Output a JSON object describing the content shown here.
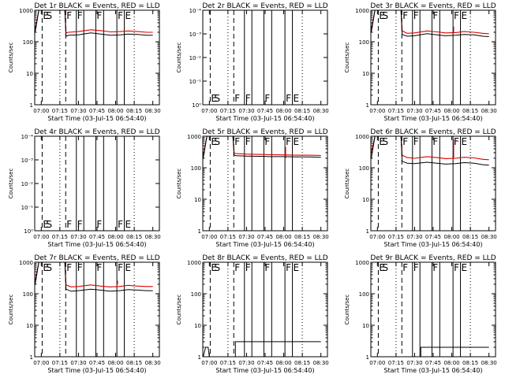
{
  "chart_data": {
    "type": "line",
    "panel_title_suffix": "BLACK = Events, RED = LLD",
    "xlabel": "Start Time (03-Jul-15 06:54:40)",
    "ylabel": "Counts/sec",
    "series_names": [
      "Events",
      "LLD"
    ],
    "series_colors": {
      "Events": "#000000",
      "LLD": "#dd0000"
    },
    "x_unit": "minutes after 07:00",
    "xlim": [
      -5.3,
      95.3
    ],
    "x_tick_values": [
      0,
      15,
      30,
      45,
      60,
      75,
      90
    ],
    "x_tick_labels": [
      "07:00",
      "07:15",
      "07:30",
      "07:45",
      "08:00",
      "08:15",
      "08:30"
    ],
    "ylim": [
      1,
      1000
    ],
    "y_scale": "log",
    "y_tick_values": [
      1,
      10,
      100,
      1000
    ],
    "y_tick_labels": [
      "1",
      "10",
      "100",
      "1000"
    ],
    "y_tick_labels_empty_panel": [
      "10⁰",
      "10⁻¹",
      "10⁻²",
      "10⁻³",
      "10⁻⁴"
    ],
    "markers": [
      {
        "minute": 0.7,
        "text": "E",
        "line": "dashed"
      },
      {
        "minute": 3.3,
        "text": "S",
        "line": "none"
      },
      {
        "minute": 15.0,
        "text": "",
        "line": "dotted"
      },
      {
        "minute": 19.7,
        "text": "F",
        "line": "dashed"
      },
      {
        "minute": 28.3,
        "text": "F",
        "line": "solid"
      },
      {
        "minute": 34.3,
        "text": "",
        "line": "solid"
      },
      {
        "minute": 44.0,
        "text": "F",
        "line": "solid"
      },
      {
        "minute": 50.3,
        "text": "",
        "line": "solid"
      },
      {
        "minute": 61.0,
        "text": "F",
        "line": "solid"
      },
      {
        "minute": 67.0,
        "text": "E",
        "line": "solid"
      },
      {
        "minute": 75.0,
        "text": "",
        "line": "dotted"
      }
    ],
    "panels": [
      {
        "id": "1r",
        "title": "Det 1r",
        "has_data": true,
        "spike": null,
        "events": [
          [
            -5,
            200
          ],
          [
            -2,
            1000
          ],
          [
            19,
            1000
          ],
          [
            20,
            150
          ],
          [
            22,
            160
          ],
          [
            30,
            165
          ],
          [
            40,
            190
          ],
          [
            48,
            175
          ],
          [
            56,
            160
          ],
          [
            64,
            165
          ],
          [
            70,
            175
          ],
          [
            78,
            170
          ],
          [
            85,
            160
          ],
          [
            90,
            160
          ]
        ],
        "lld": [
          [
            -5,
            250
          ],
          [
            -2,
            1000
          ],
          [
            19,
            1000
          ],
          [
            20,
            190
          ],
          [
            22,
            200
          ],
          [
            30,
            210
          ],
          [
            40,
            240
          ],
          [
            48,
            225
          ],
          [
            56,
            205
          ],
          [
            64,
            210
          ],
          [
            70,
            220
          ],
          [
            78,
            210
          ],
          [
            85,
            200
          ],
          [
            90,
            200
          ]
        ]
      },
      {
        "id": "2r",
        "title": "Det 2r",
        "has_data": false,
        "spike": null,
        "events": [],
        "lld": []
      },
      {
        "id": "3r",
        "title": "Det 3r",
        "has_data": true,
        "spike": 300,
        "events": [
          [
            -5,
            200
          ],
          [
            -2,
            1000
          ],
          [
            19,
            1000
          ],
          [
            20,
            170
          ],
          [
            24,
            150
          ],
          [
            30,
            155
          ],
          [
            40,
            180
          ],
          [
            48,
            165
          ],
          [
            55,
            155
          ],
          [
            63,
            160
          ],
          [
            70,
            170
          ],
          [
            78,
            165
          ],
          [
            85,
            150
          ],
          [
            90,
            145
          ]
        ],
        "lld": [
          [
            -5,
            250
          ],
          [
            -2,
            1000
          ],
          [
            19,
            1000
          ],
          [
            20,
            220
          ],
          [
            24,
            185
          ],
          [
            30,
            190
          ],
          [
            40,
            220
          ],
          [
            48,
            205
          ],
          [
            55,
            190
          ],
          [
            63,
            195
          ],
          [
            70,
            210
          ],
          [
            78,
            200
          ],
          [
            85,
            185
          ],
          [
            90,
            180
          ]
        ]
      },
      {
        "id": "4r",
        "title": "Det 4r",
        "has_data": false,
        "spike": null,
        "events": [],
        "lld": []
      },
      {
        "id": "5r",
        "title": "Det 5r",
        "has_data": true,
        "spike": 450,
        "events": [
          [
            -5,
            200
          ],
          [
            -2,
            1000
          ],
          [
            19,
            1000
          ],
          [
            20,
            250
          ],
          [
            22,
            240
          ],
          [
            30,
            235
          ],
          [
            40,
            230
          ],
          [
            50,
            225
          ],
          [
            60,
            225
          ],
          [
            70,
            220
          ],
          [
            80,
            220
          ],
          [
            90,
            215
          ]
        ],
        "lld": [
          [
            -5,
            250
          ],
          [
            -2,
            1000
          ],
          [
            19,
            1000
          ],
          [
            20,
            290
          ],
          [
            22,
            280
          ],
          [
            30,
            270
          ],
          [
            40,
            265
          ],
          [
            50,
            260
          ],
          [
            60,
            255
          ],
          [
            70,
            250
          ],
          [
            80,
            250
          ],
          [
            90,
            245
          ]
        ]
      },
      {
        "id": "6r",
        "title": "Det 6r",
        "has_data": true,
        "spike": 800,
        "events": [
          [
            -5,
            200
          ],
          [
            -2,
            1000
          ],
          [
            19,
            1000
          ],
          [
            20,
            160
          ],
          [
            24,
            140
          ],
          [
            30,
            135
          ],
          [
            40,
            150
          ],
          [
            48,
            140
          ],
          [
            55,
            130
          ],
          [
            63,
            135
          ],
          [
            70,
            145
          ],
          [
            78,
            140
          ],
          [
            85,
            125
          ],
          [
            90,
            120
          ]
        ],
        "lld": [
          [
            -5,
            300
          ],
          [
            -2,
            1000
          ],
          [
            19,
            1000
          ],
          [
            20,
            250
          ],
          [
            24,
            210
          ],
          [
            30,
            200
          ],
          [
            40,
            225
          ],
          [
            48,
            210
          ],
          [
            55,
            195
          ],
          [
            63,
            200
          ],
          [
            70,
            215
          ],
          [
            78,
            205
          ],
          [
            85,
            185
          ],
          [
            90,
            180
          ]
        ]
      },
      {
        "id": "7r",
        "title": "Det 7r",
        "has_data": true,
        "spike": 260,
        "events": [
          [
            -5,
            200
          ],
          [
            -2,
            1000
          ],
          [
            19,
            1000
          ],
          [
            20,
            140
          ],
          [
            24,
            120
          ],
          [
            30,
            125
          ],
          [
            40,
            140
          ],
          [
            48,
            130
          ],
          [
            55,
            120
          ],
          [
            63,
            125
          ],
          [
            70,
            135
          ],
          [
            78,
            130
          ],
          [
            85,
            125
          ],
          [
            90,
            125
          ]
        ],
        "lld": [
          [
            -5,
            260
          ],
          [
            -2,
            1000
          ],
          [
            19,
            1000
          ],
          [
            20,
            190
          ],
          [
            24,
            165
          ],
          [
            30,
            170
          ],
          [
            40,
            190
          ],
          [
            48,
            175
          ],
          [
            55,
            165
          ],
          [
            63,
            170
          ],
          [
            70,
            185
          ],
          [
            78,
            175
          ],
          [
            85,
            170
          ],
          [
            90,
            170
          ]
        ]
      },
      {
        "id": "8r",
        "title": "Det 8r",
        "has_data": true,
        "spike": null,
        "events": [
          [
            -5,
            1
          ],
          [
            -3,
            2
          ],
          [
            -1,
            2
          ],
          [
            0,
            1
          ],
          [
            21,
            1
          ],
          [
            21,
            3
          ],
          [
            90,
            3
          ]
        ],
        "lld": []
      },
      {
        "id": "9r",
        "title": "Det 9r",
        "has_data": true,
        "spike": null,
        "events": [
          [
            -5,
            1
          ],
          [
            35,
            1
          ],
          [
            35,
            2
          ],
          [
            90,
            2
          ]
        ],
        "lld": []
      }
    ]
  }
}
